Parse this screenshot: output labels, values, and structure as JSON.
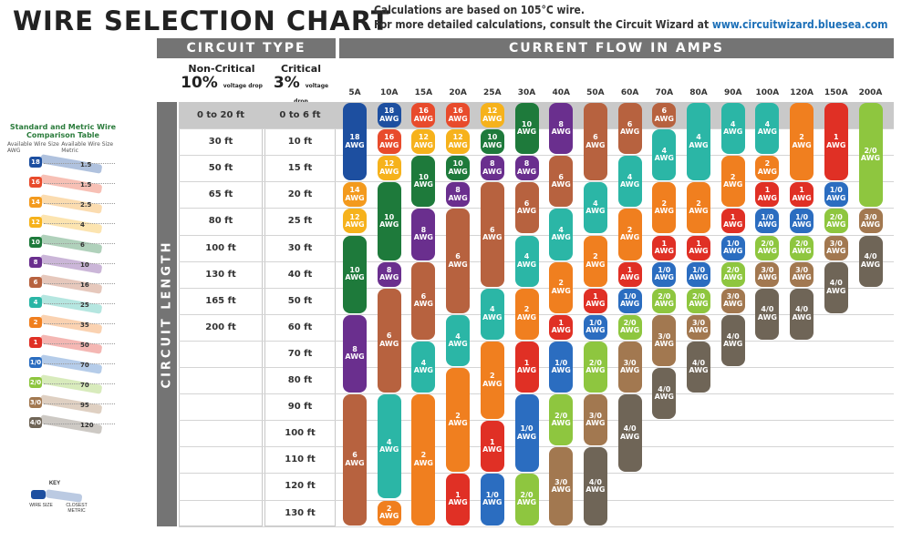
{
  "header": {
    "title": "WIRE SELECTION CHART",
    "note1": "Calculations are based on 105°C wire.",
    "note2": "For more detailed calculations, consult the Circuit Wizard at ",
    "url": "www.circuitwizard.bluesea.com"
  },
  "circuit_type": {
    "label": "CIRCUIT TYPE",
    "noncritical_label": "Non-Critical",
    "noncritical_pct": "10%",
    "critical_label": "Critical",
    "critical_pct": "3%",
    "vd_small": "voltage drop"
  },
  "current_label": "CURRENT FLOW IN AMPS",
  "length_label": "CIRCUIT LENGTH",
  "awg_suffix": "AWG",
  "legend": {
    "title": "Standard and Metric Wire Comparison Table",
    "col1": "Available Wire Size AWG",
    "col2": "Available Wire Size Metric",
    "rows": [
      {
        "awg": "18",
        "mm": "1.5",
        "color": "#1d4fa0"
      },
      {
        "awg": "16",
        "mm": "1.5",
        "color": "#e84b2c"
      },
      {
        "awg": "14",
        "mm": "2.5",
        "color": "#f39a1e"
      },
      {
        "awg": "12",
        "mm": "4",
        "color": "#f6b21c"
      },
      {
        "awg": "10",
        "mm": "6",
        "color": "#1e7a3b"
      },
      {
        "awg": "8",
        "mm": "10",
        "color": "#6a2f8e"
      },
      {
        "awg": "6",
        "mm": "16",
        "color": "#b7623f"
      },
      {
        "awg": "4",
        "mm": "25",
        "color": "#2bb6a6"
      },
      {
        "awg": "2",
        "mm": "35",
        "color": "#f07f1f"
      },
      {
        "awg": "1",
        "mm": "50",
        "color": "#e03025"
      },
      {
        "awg": "1/0",
        "mm": "70",
        "color": "#2b6dc0"
      },
      {
        "awg": "2/0",
        "mm": "70",
        "color": "#8ec63f"
      },
      {
        "awg": "3/0",
        "mm": "95",
        "color": "#a27850"
      },
      {
        "awg": "4/0",
        "mm": "120",
        "color": "#6f6557"
      }
    ],
    "key_title": "KEY",
    "key_wire": "WIRE SIZE",
    "key_metric": "CLOSEST METRIC"
  },
  "colors": {
    "18": "#1d4fa0",
    "16": "#e84b2c",
    "14": "#f39a1e",
    "12": "#f6b21c",
    "10": "#1e7a3b",
    "8": "#6a2f8e",
    "6": "#b7623f",
    "4": "#2bb6a6",
    "2": "#f07f1f",
    "1": "#e03025",
    "1/0": "#2b6dc0",
    "2/0": "#8ec63f",
    "3/0": "#a27850",
    "4/0": "#6f6557"
  },
  "chart_data": {
    "type": "table",
    "title": "WIRE SELECTION CHART",
    "xlabel": "CURRENT FLOW IN AMPS",
    "ylabel": "CIRCUIT LENGTH",
    "amps": [
      "5A",
      "10A",
      "15A",
      "20A",
      "25A",
      "30A",
      "40A",
      "50A",
      "60A",
      "70A",
      "80A",
      "90A",
      "100A",
      "120A",
      "150A",
      "200A"
    ],
    "noncritical_lengths": [
      "0 to 20 ft",
      "30 ft",
      "50 ft",
      "65 ft",
      "80 ft",
      "100 ft",
      "130 ft",
      "165 ft",
      "200 ft"
    ],
    "critical_lengths": [
      "0 to 6 ft",
      "10 ft",
      "15 ft",
      "20 ft",
      "25 ft",
      "30 ft",
      "40 ft",
      "50 ft",
      "60 ft",
      "70 ft",
      "80 ft",
      "90 ft",
      "100 ft",
      "110 ft",
      "120 ft",
      "130 ft"
    ],
    "columns": [
      [
        [
          "18",
          0,
          3
        ],
        [
          "14",
          3,
          4
        ],
        [
          "12",
          4,
          5
        ],
        [
          "10",
          5,
          8
        ],
        [
          "8",
          8,
          11
        ],
        [
          "6",
          11,
          16
        ]
      ],
      [
        [
          "18",
          0,
          1
        ],
        [
          "16",
          1,
          2
        ],
        [
          "12",
          2,
          3
        ],
        [
          "10",
          3,
          6
        ],
        [
          "8",
          6,
          7
        ],
        [
          "6",
          7,
          11
        ],
        [
          "4",
          11,
          15
        ],
        [
          "2",
          15,
          16
        ]
      ],
      [
        [
          "16",
          0,
          1
        ],
        [
          "12",
          1,
          2
        ],
        [
          "10",
          2,
          4
        ],
        [
          "8",
          4,
          6
        ],
        [
          "6",
          6,
          9
        ],
        [
          "4",
          9,
          11
        ],
        [
          "2",
          11,
          16
        ]
      ],
      [
        [
          "16",
          0,
          1
        ],
        [
          "12",
          1,
          2
        ],
        [
          "10",
          2,
          3
        ],
        [
          "8",
          3,
          4
        ],
        [
          "6",
          4,
          8
        ],
        [
          "4",
          8,
          10
        ],
        [
          "2",
          10,
          14
        ],
        [
          "1",
          14,
          16
        ]
      ],
      [
        [
          "12",
          0,
          1
        ],
        [
          "10",
          1,
          2
        ],
        [
          "8",
          2,
          3
        ],
        [
          "6",
          3,
          7
        ],
        [
          "4",
          7,
          9
        ],
        [
          "2",
          9,
          12
        ],
        [
          "1",
          12,
          14
        ],
        [
          "1/0",
          14,
          16
        ]
      ],
      [
        [
          "10",
          0,
          2
        ],
        [
          "8",
          2,
          3
        ],
        [
          "6",
          3,
          5
        ],
        [
          "4",
          5,
          7
        ],
        [
          "2",
          7,
          9
        ],
        [
          "1",
          9,
          11
        ],
        [
          "1/0",
          11,
          14
        ],
        [
          "2/0",
          14,
          16
        ]
      ],
      [
        [
          "8",
          0,
          2
        ],
        [
          "6",
          2,
          4
        ],
        [
          "4",
          4,
          6
        ],
        [
          "2",
          6,
          8
        ],
        [
          "1",
          8,
          9
        ],
        [
          "1/0",
          9,
          11
        ],
        [
          "2/0",
          11,
          13
        ],
        [
          "3/0",
          13,
          16
        ]
      ],
      [
        [
          "6",
          0,
          3
        ],
        [
          "4",
          3,
          5
        ],
        [
          "2",
          5,
          7
        ],
        [
          "1",
          7,
          8
        ],
        [
          "1/0",
          8,
          9
        ],
        [
          "2/0",
          9,
          11
        ],
        [
          "3/0",
          11,
          13
        ],
        [
          "4/0",
          13,
          16
        ]
      ],
      [
        [
          "6",
          0,
          2
        ],
        [
          "4",
          2,
          4
        ],
        [
          "2",
          4,
          6
        ],
        [
          "1",
          6,
          7
        ],
        [
          "1/0",
          7,
          8
        ],
        [
          "2/0",
          8,
          9
        ],
        [
          "3/0",
          9,
          11
        ],
        [
          "4/0",
          11,
          14
        ]
      ],
      [
        [
          "6",
          0,
          1
        ],
        [
          "4",
          1,
          3
        ],
        [
          "2",
          3,
          5
        ],
        [
          "1",
          5,
          6
        ],
        [
          "1/0",
          6,
          7
        ],
        [
          "2/0",
          7,
          8
        ],
        [
          "3/0",
          8,
          10
        ],
        [
          "4/0",
          10,
          12
        ]
      ],
      [
        [
          "4",
          0,
          3
        ],
        [
          "2",
          3,
          5
        ],
        [
          "1",
          5,
          6
        ],
        [
          "1/0",
          6,
          7
        ],
        [
          "2/0",
          7,
          8
        ],
        [
          "3/0",
          8,
          9
        ],
        [
          "4/0",
          9,
          11
        ]
      ],
      [
        [
          "4",
          0,
          2
        ],
        [
          "2",
          2,
          4
        ],
        [
          "1",
          4,
          5
        ],
        [
          "1/0",
          5,
          6
        ],
        [
          "2/0",
          6,
          7
        ],
        [
          "3/0",
          7,
          8
        ],
        [
          "4/0",
          8,
          10
        ]
      ],
      [
        [
          "4",
          0,
          2
        ],
        [
          "2",
          2,
          3
        ],
        [
          "1",
          3,
          4
        ],
        [
          "1/0",
          4,
          5
        ],
        [
          "2/0",
          5,
          6
        ],
        [
          "3/0",
          6,
          7
        ],
        [
          "4/0",
          7,
          9
        ]
      ],
      [
        [
          "2",
          0,
          3
        ],
        [
          "1",
          3,
          4
        ],
        [
          "1/0",
          4,
          5
        ],
        [
          "2/0",
          5,
          6
        ],
        [
          "3/0",
          6,
          7
        ],
        [
          "4/0",
          7,
          9
        ]
      ],
      [
        [
          "1",
          0,
          3
        ],
        [
          "1/0",
          3,
          4
        ],
        [
          "2/0",
          4,
          5
        ],
        [
          "3/0",
          5,
          6
        ],
        [
          "4/0",
          6,
          8
        ]
      ],
      [
        [
          "2/0",
          0,
          4
        ],
        [
          "3/0",
          4,
          5
        ],
        [
          "4/0",
          5,
          7
        ]
      ]
    ]
  }
}
